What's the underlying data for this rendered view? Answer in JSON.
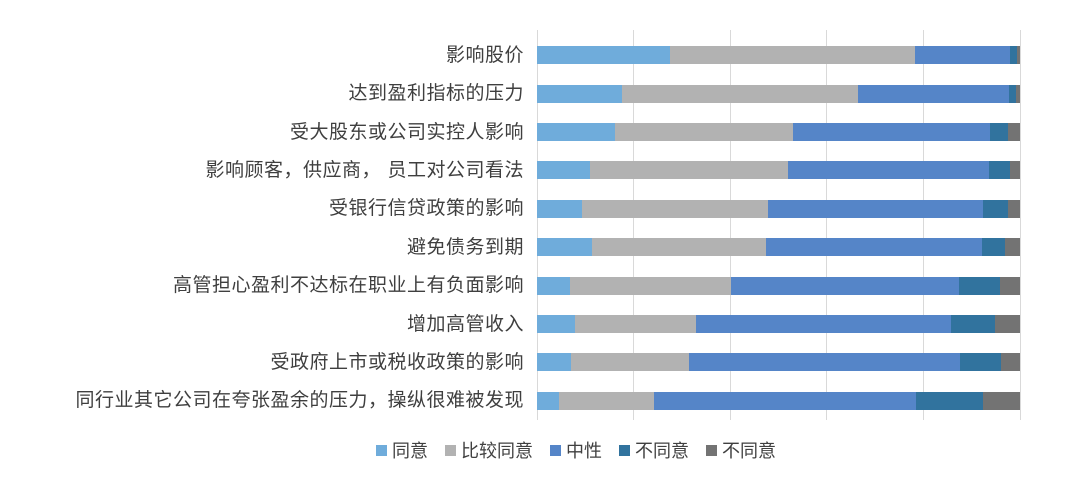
{
  "chart_data": {
    "type": "bar",
    "stacked": true,
    "orientation": "horizontal",
    "title": "",
    "xlabel": "",
    "ylabel": "",
    "xlim": [
      0,
      100
    ],
    "gridlines_percent": [
      0,
      20,
      40,
      60,
      80,
      100
    ],
    "grid": "vertical-only",
    "legend_position": "bottom",
    "gridline_color": "#d9d9d9",
    "categories": [
      "影响股价",
      "达到盈利指标的压力",
      "受大股东或公司实控人影响",
      "影响顾客，供应商， 员工对公司看法",
      "受银行信贷政策的影响",
      "避免债务到期",
      "高管担心盈利不达标在职业上有负面影响",
      "增加高管收入",
      "受政府上市或税收政策的影响",
      "同行业其它公司在夸张盈余的压力，操纵很难被发现"
    ],
    "series": [
      {
        "key": "agree",
        "name": "同意",
        "color": "#6facdb",
        "values": [
          27.5,
          17.5,
          16.1,
          10.9,
          9.3,
          11.4,
          6.9,
          7.9,
          7.1,
          4.5
        ]
      },
      {
        "key": "somewhat-agree",
        "name": "比较同意",
        "color": "#b2b2b2",
        "values": [
          50.7,
          49.0,
          36.9,
          41.1,
          38.5,
          36.1,
          33.3,
          25.1,
          24.3,
          19.8
        ]
      },
      {
        "key": "neutral",
        "name": "中性",
        "color": "#5585c8",
        "values": [
          19.7,
          31.2,
          40.8,
          41.5,
          44.5,
          44.7,
          47.1,
          52.8,
          56.1,
          54.1
        ]
      },
      {
        "key": "disagree",
        "name": "不同意",
        "color": "#31739e",
        "values": [
          1.4,
          1.5,
          3.7,
          4.5,
          5.2,
          4.8,
          8.6,
          9.0,
          8.6,
          13.9
        ]
      },
      {
        "key": "disagree-2",
        "name": "不同意",
        "color": "#737373",
        "values": [
          0.7,
          0.8,
          2.5,
          2.0,
          2.5,
          3.0,
          4.1,
          5.2,
          3.9,
          7.7
        ]
      }
    ]
  }
}
